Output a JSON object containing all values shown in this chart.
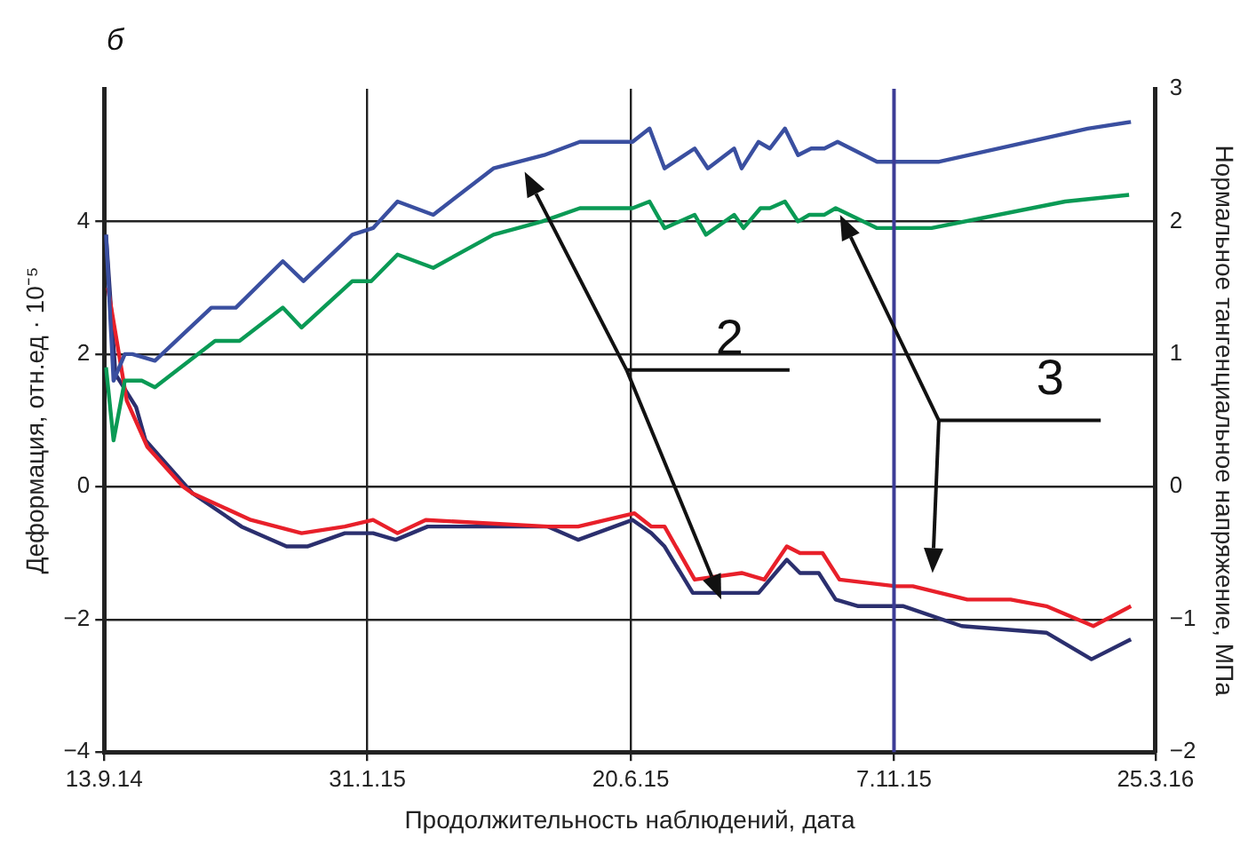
{
  "chart_data": {
    "type": "line",
    "xlabel": "Продолжительность наблюдений, дата",
    "ylabel": "Деформация, отн.ед · 10⁻⁵",
    "y2label": "Нормальное тангенциальное напряжение, МПа",
    "annotations": [
      "б",
      "2",
      "3"
    ],
    "xlim": [
      "2014-09-13",
      "2016-03-25"
    ],
    "xticks": [
      {
        "value": "2014-09-13",
        "label": "13.9.14"
      },
      {
        "value": "2015-01-31",
        "label": "31.1.15"
      },
      {
        "value": "2015-06-20",
        "label": "20.6.15"
      },
      {
        "value": "2015-11-07",
        "label": "7.11.15"
      },
      {
        "value": "2016-03-25",
        "label": "25.3.16"
      }
    ],
    "ylim": [
      -4,
      6
    ],
    "yticks": [
      {
        "value": -4,
        "label": "−4"
      },
      {
        "value": -2,
        "label": "−2"
      },
      0,
      2,
      4
    ],
    "y2lim": [
      -2,
      3
    ],
    "y2ticks": [
      {
        "value": -2,
        "label": "−2"
      },
      {
        "value": -1,
        "label": "−1"
      },
      0,
      1,
      2,
      3
    ],
    "grid": true,
    "legend": false,
    "marker": "none",
    "line_style": "solid",
    "ref_lines": [
      {
        "axis": "x",
        "value": "2015-11-07",
        "label": null,
        "color": "#3c3c96"
      }
    ],
    "series": [
      {
        "color": "#3a4fa0",
        "x": [
          "2014-09-14",
          "2014-09-18",
          "2014-09-24",
          "2014-09-28",
          "2014-10-10",
          "2014-11-09",
          "2014-11-22",
          "2014-12-17",
          "2014-12-28",
          "2015-01-23",
          "2015-02-03",
          "2015-02-16",
          "2015-03-07",
          "2015-04-08",
          "2015-05-05",
          "2015-05-24",
          "2015-06-21",
          "2015-06-30",
          "2015-07-08",
          "2015-07-24",
          "2015-07-31",
          "2015-08-14",
          "2015-08-18",
          "2015-08-27",
          "2015-09-02",
          "2015-09-10",
          "2015-09-17",
          "2015-09-24",
          "2015-10-01",
          "2015-10-08",
          "2015-10-29",
          "2015-12-01",
          "2016-02-18",
          "2016-03-12"
        ],
        "values": [
          3.8,
          1.6,
          2.0,
          2.0,
          1.9,
          2.7,
          2.7,
          3.4,
          3.1,
          3.8,
          3.9,
          4.3,
          4.1,
          4.8,
          5.0,
          5.2,
          5.2,
          5.4,
          4.8,
          5.1,
          4.8,
          5.1,
          4.8,
          5.2,
          5.1,
          5.4,
          5.0,
          5.1,
          5.1,
          5.2,
          4.9,
          4.9,
          5.4,
          5.5
        ]
      },
      {
        "color": "#0a9a55",
        "x": [
          "2014-09-14",
          "2014-09-18",
          "2014-09-24",
          "2014-10-03",
          "2014-10-10",
          "2014-11-11",
          "2014-11-24",
          "2014-12-17",
          "2014-12-27",
          "2015-01-23",
          "2015-02-02",
          "2015-02-16",
          "2015-03-07",
          "2015-04-08",
          "2015-05-04",
          "2015-05-24",
          "2015-06-21",
          "2015-06-30",
          "2015-07-08",
          "2015-07-24",
          "2015-07-30",
          "2015-08-14",
          "2015-08-19",
          "2015-08-28",
          "2015-09-02",
          "2015-09-10",
          "2015-09-17",
          "2015-09-23",
          "2015-10-01",
          "2015-10-07",
          "2015-10-29",
          "2015-11-27",
          "2016-02-06",
          "2016-03-11"
        ],
        "values": [
          1.8,
          0.7,
          1.6,
          1.6,
          1.5,
          2.2,
          2.2,
          2.7,
          2.4,
          3.1,
          3.1,
          3.5,
          3.3,
          3.8,
          4.0,
          4.2,
          4.2,
          4.3,
          3.9,
          4.1,
          3.8,
          4.1,
          3.9,
          4.2,
          4.2,
          4.3,
          4.0,
          4.1,
          4.1,
          4.2,
          3.9,
          3.9,
          4.3,
          4.4
        ]
      },
      {
        "color": "#e8202a",
        "x": [
          "2014-09-15",
          "2014-09-25",
          "2014-10-06",
          "2014-10-25",
          "2014-10-30",
          "2014-11-30",
          "2014-12-27",
          "2015-01-19",
          "2015-02-03",
          "2015-02-16",
          "2015-03-03",
          "2015-05-07",
          "2015-05-23",
          "2015-06-22",
          "2015-07-01",
          "2015-07-08",
          "2015-07-24",
          "2015-08-18",
          "2015-08-30",
          "2015-09-11",
          "2015-09-18",
          "2015-09-30",
          "2015-10-09",
          "2015-11-08",
          "2015-11-17",
          "2015-12-16",
          "2016-01-08",
          "2016-01-27",
          "2016-02-21",
          "2016-03-12"
        ],
        "values": [
          3.0,
          1.3,
          0.6,
          0.0,
          -0.1,
          -0.5,
          -0.7,
          -0.6,
          -0.5,
          -0.7,
          -0.5,
          -0.6,
          -0.6,
          -0.4,
          -0.6,
          -0.6,
          -1.4,
          -1.3,
          -1.4,
          -0.9,
          -1.0,
          -1.0,
          -1.4,
          -1.5,
          -1.5,
          -1.7,
          -1.7,
          -1.8,
          -2.1,
          -1.8
        ]
      },
      {
        "color": "#2b2f6e",
        "x": [
          "2014-09-14",
          "2014-09-19",
          "2014-09-30",
          "2014-10-05",
          "2014-10-30",
          "2014-11-25",
          "2014-12-19",
          "2014-12-30",
          "2015-01-19",
          "2015-02-03",
          "2015-02-15",
          "2015-03-04",
          "2015-05-07",
          "2015-05-23",
          "2015-06-21",
          "2015-07-01",
          "2015-07-08",
          "2015-07-23",
          "2015-07-29",
          "2015-08-18",
          "2015-08-27",
          "2015-09-11",
          "2015-09-18",
          "2015-09-28",
          "2015-10-07",
          "2015-10-19",
          "2015-11-12",
          "2015-12-13",
          "2016-01-27",
          "2016-02-20",
          "2016-03-12"
        ],
        "values": [
          3.8,
          1.7,
          1.2,
          0.7,
          -0.1,
          -0.6,
          -0.9,
          -0.9,
          -0.7,
          -0.7,
          -0.8,
          -0.6,
          -0.6,
          -0.8,
          -0.5,
          -0.7,
          -0.9,
          -1.6,
          -1.6,
          -1.6,
          -1.6,
          -1.1,
          -1.3,
          -1.3,
          -1.7,
          -1.8,
          -1.8,
          -2.1,
          -2.2,
          -2.6,
          -2.3
        ]
      }
    ]
  }
}
